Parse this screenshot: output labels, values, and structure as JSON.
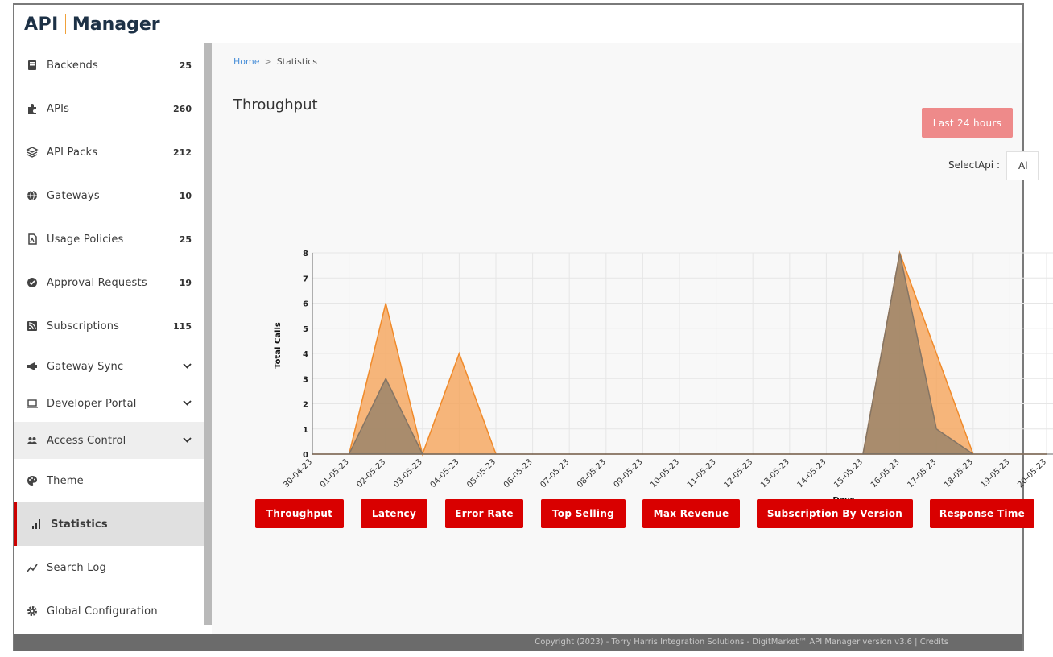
{
  "brand": {
    "logo_api": "API",
    "logo_manager": "Manager"
  },
  "sidebar": {
    "items": [
      {
        "label": "Backends",
        "count": "25",
        "icon": "server-icon"
      },
      {
        "label": "APIs",
        "count": "260",
        "icon": "puzzle-icon"
      },
      {
        "label": "API Packs",
        "count": "212",
        "icon": "layers-icon"
      },
      {
        "label": "Gateways",
        "count": "10",
        "icon": "globe-icon"
      },
      {
        "label": "Usage Policies",
        "count": "25",
        "icon": "policy-document-icon"
      },
      {
        "label": "Approval Requests",
        "count": "19",
        "icon": "check-circle-icon"
      },
      {
        "label": "Subscriptions",
        "count": "115",
        "icon": "rss-icon"
      },
      {
        "label": "Gateway Sync",
        "icon": "megaphone-icon"
      },
      {
        "label": "Developer Portal",
        "icon": "laptop-icon"
      },
      {
        "label": "Access Control",
        "icon": "users-icon"
      },
      {
        "label": "Theme",
        "icon": "palette-icon"
      },
      {
        "label": "Statistics",
        "icon": "bar-chart-icon"
      },
      {
        "label": "Search Log",
        "icon": "line-chart-icon"
      },
      {
        "label": "Global Configuration",
        "icon": "gear-icon"
      }
    ]
  },
  "breadcrumb": {
    "home": "Home",
    "separator": ">",
    "current": "Statistics"
  },
  "page": {
    "title": "Throughput"
  },
  "controls": {
    "range_button": "Last 24 hours",
    "select_label": "SelectApi :",
    "select_value": "Al"
  },
  "chart_data": {
    "type": "area",
    "xlabel": "Days",
    "ylabel": "Total Calls",
    "ylim": [
      0,
      8
    ],
    "yticks": [
      0,
      1,
      2,
      3,
      4,
      5,
      6,
      7,
      8
    ],
    "grid": true,
    "categories": [
      "30-04-23",
      "01-05-23",
      "02-05-23",
      "03-05-23",
      "04-05-23",
      "05-05-23",
      "06-05-23",
      "07-05-23",
      "08-05-23",
      "09-05-23",
      "10-05-23",
      "11-05-23",
      "12-05-23",
      "13-05-23",
      "14-05-23",
      "15-05-23",
      "16-05-23",
      "17-05-23",
      "18-05-23",
      "19-05-23",
      "20-05-23"
    ],
    "series": [
      {
        "values": [
          0,
          0,
          6,
          0,
          4,
          0,
          0,
          0,
          0,
          0,
          0,
          0,
          0,
          0,
          0,
          0,
          8,
          4,
          0,
          0,
          0
        ],
        "color": "#f5a45a"
      },
      {
        "values": [
          0,
          0,
          3,
          0,
          0,
          0,
          0,
          0,
          0,
          0,
          0,
          0,
          0,
          0,
          0,
          0,
          8,
          1,
          0,
          0,
          0
        ],
        "color": "#8f7f6a"
      }
    ]
  },
  "metrics": {
    "buttons": [
      "Throughput",
      "Latency",
      "Error Rate",
      "Top Selling",
      "Max Revenue",
      "Subscription By Version",
      "Response Time"
    ]
  },
  "footer": {
    "text": "Copyright (2023) - Torry Harris Integration Solutions - DigitMarket™ API Manager version v3.6 | Credits"
  }
}
